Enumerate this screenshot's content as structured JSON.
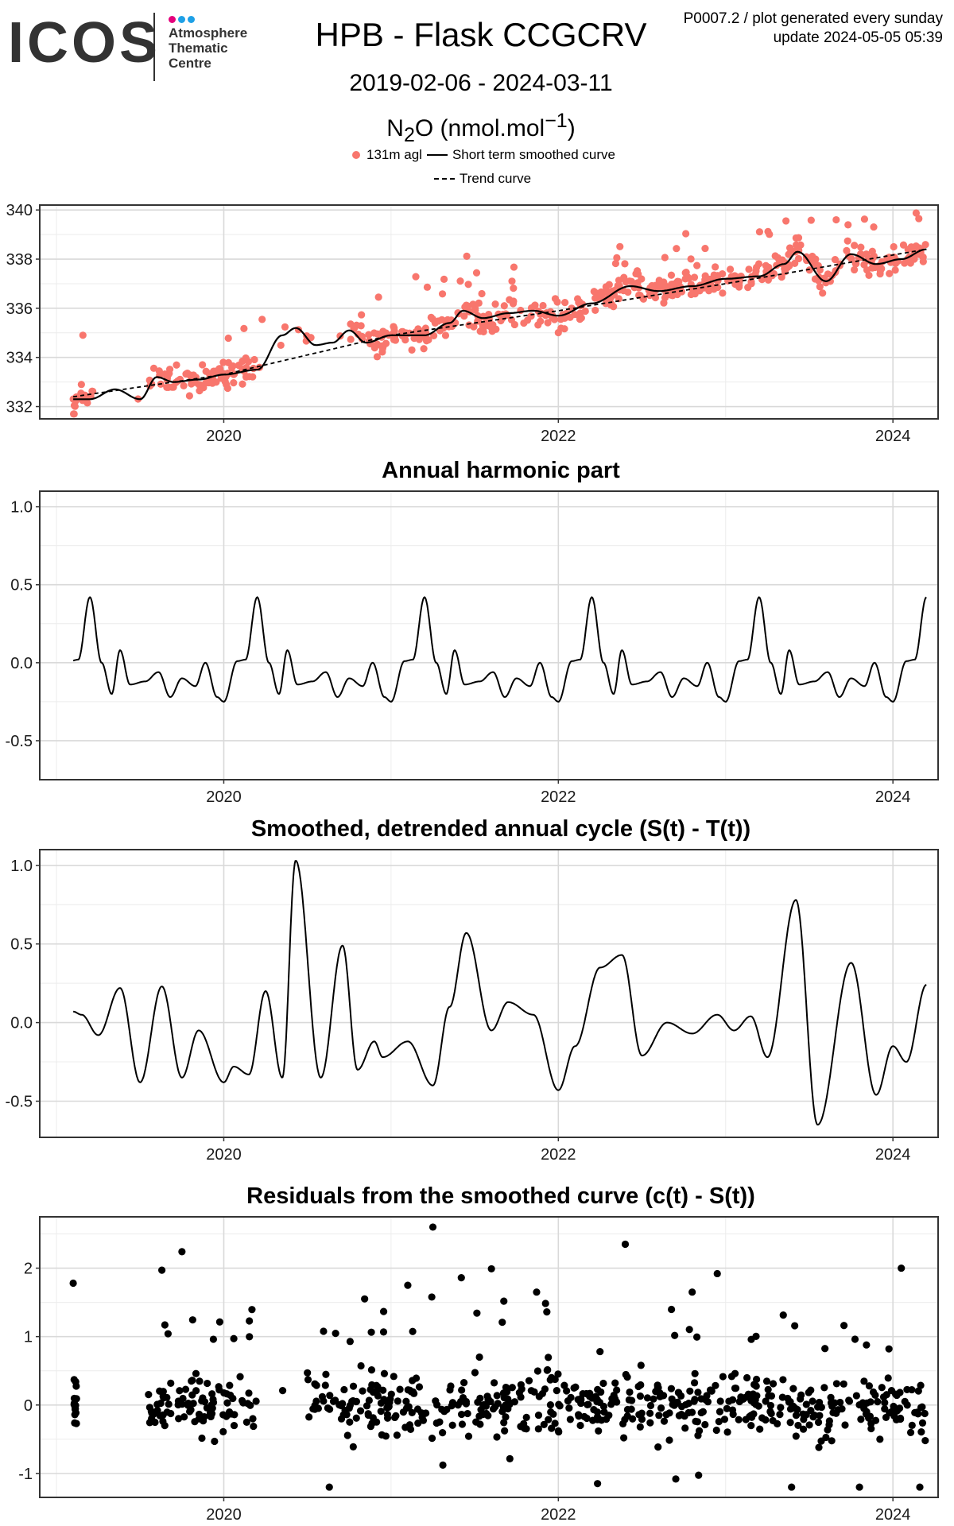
{
  "header": {
    "logo_text": "ICOS",
    "logo_subtitle_lines": [
      "Atmosphere",
      "Thematic",
      "Centre"
    ],
    "logo_dot_colors": [
      "#e4007c",
      "#1ea0e6",
      "#1ea0e6"
    ],
    "title": "HPB - Flask CCGCRV",
    "date_range": "2019-02-06 - 2024-03-11",
    "species_prefix": "N",
    "species_sub": "2",
    "species_mid": "O (nmol.mol",
    "species_sup": "−1",
    "species_suffix": ")",
    "note_line1": "P0007.2 / plot generated every sunday",
    "note_line2": "update  2024-05-05 05:39"
  },
  "legend": {
    "points_label": "131m agl",
    "smoothed_label": "Short term smoothed curve",
    "trend_label": "Trend curve"
  },
  "colors": {
    "points": "#f8766d",
    "line": "#000000",
    "panel_border": "#333333",
    "grid_major": "#d9d9d9",
    "grid_minor": "#ececec"
  },
  "chart_data": [
    {
      "type": "scatter",
      "title": "",
      "xlabel": "",
      "ylabel": "",
      "xlim": [
        2018.9,
        2024.27
      ],
      "ylim": [
        331.5,
        340.2
      ],
      "x_ticks": [
        2020,
        2022,
        2024
      ],
      "x_tick_labels": [
        "2020",
        "2022",
        "2024"
      ],
      "y_ticks": [
        332,
        334,
        336,
        338,
        340
      ],
      "y_tick_labels": [
        "332",
        "334",
        "336",
        "338",
        "340"
      ],
      "grid": true,
      "legend_position": "top",
      "series": [
        {
          "name": "131m agl",
          "kind": "points",
          "note": "flask samples, approx. 700 points, ~0.7 nmol/mol scatter around the smoothed curve"
        },
        {
          "name": "Short term smoothed curve",
          "kind": "line",
          "x": [
            2019.1,
            2019.2,
            2019.35,
            2019.5,
            2019.6,
            2019.7,
            2019.85,
            2020.0,
            2020.2,
            2020.35,
            2020.43,
            2020.55,
            2020.65,
            2020.75,
            2020.85,
            2021.0,
            2021.2,
            2021.35,
            2021.43,
            2021.55,
            2021.7,
            2021.85,
            2022.0,
            2022.2,
            2022.43,
            2022.6,
            2022.8,
            2023.0,
            2023.2,
            2023.35,
            2023.43,
            2023.6,
            2023.75,
            2023.9,
            2024.05,
            2024.2
          ],
          "y": [
            332.3,
            332.3,
            332.7,
            332.3,
            333.2,
            333.0,
            333.1,
            333.3,
            333.5,
            334.9,
            335.2,
            334.5,
            334.6,
            335.1,
            334.6,
            334.9,
            334.9,
            335.4,
            335.9,
            335.6,
            335.8,
            335.9,
            335.7,
            336.2,
            336.9,
            336.7,
            336.9,
            337.2,
            337.3,
            337.8,
            338.3,
            337.1,
            338.2,
            337.8,
            338.0,
            338.4
          ]
        },
        {
          "name": "Trend curve",
          "kind": "dashed-line",
          "x": [
            2019.1,
            2020.0,
            2021.0,
            2022.0,
            2023.0,
            2024.2
          ],
          "y": [
            332.4,
            333.3,
            334.9,
            335.9,
            337.0,
            338.4
          ]
        }
      ]
    },
    {
      "type": "line",
      "title": "Annual harmonic part",
      "xlim": [
        2018.9,
        2024.27
      ],
      "ylim": [
        -0.75,
        1.1
      ],
      "x_ticks": [
        2020,
        2022,
        2024
      ],
      "x_tick_labels": [
        "2020",
        "2022",
        "2024"
      ],
      "y_ticks": [
        -0.5,
        0.0,
        0.5,
        1.0
      ],
      "y_tick_labels": [
        "-0.5",
        "0.0",
        "0.5",
        "1.0"
      ],
      "grid": true,
      "series": [
        {
          "name": "",
          "harmonic": true,
          "x": [
            0.0,
            0.08,
            0.13,
            0.2,
            0.27,
            0.33,
            0.38,
            0.44,
            0.53,
            0.61,
            0.68,
            0.75,
            0.83,
            0.89,
            0.96
          ],
          "y": [
            -0.25,
            0.01,
            0.02,
            0.42,
            0.0,
            -0.2,
            0.08,
            -0.14,
            -0.12,
            -0.06,
            -0.22,
            -0.1,
            -0.15,
            0.0,
            -0.22
          ],
          "x_start": 2019.1,
          "x_end": 2024.2
        }
      ]
    },
    {
      "type": "line",
      "title": "Smoothed, detrended annual cycle (S(t) - T(t))",
      "xlim": [
        2018.9,
        2024.27
      ],
      "ylim": [
        -0.73,
        1.1
      ],
      "x_ticks": [
        2020,
        2022,
        2024
      ],
      "x_tick_labels": [
        "2020",
        "2022",
        "2024"
      ],
      "y_ticks": [
        -0.5,
        0.0,
        0.5,
        1.0
      ],
      "y_tick_labels": [
        "-0.5",
        "0.0",
        "0.5",
        "1.0"
      ],
      "grid": true,
      "series": [
        {
          "name": "",
          "x": [
            2019.1,
            2019.15,
            2019.25,
            2019.38,
            2019.5,
            2019.63,
            2019.75,
            2019.85,
            2020.0,
            2020.06,
            2020.15,
            2020.25,
            2020.35,
            2020.43,
            2020.58,
            2020.71,
            2020.8,
            2020.9,
            2020.95,
            2021.1,
            2021.25,
            2021.35,
            2021.45,
            2021.6,
            2021.7,
            2021.85,
            2022.0,
            2022.1,
            2022.25,
            2022.38,
            2022.5,
            2022.65,
            2022.8,
            2022.95,
            2023.05,
            2023.15,
            2023.25,
            2023.42,
            2023.55,
            2023.75,
            2023.9,
            2024.0,
            2024.08,
            2024.2
          ],
          "y": [
            0.07,
            0.05,
            -0.08,
            0.22,
            -0.38,
            0.23,
            -0.35,
            -0.05,
            -0.38,
            -0.28,
            -0.33,
            0.2,
            -0.35,
            1.03,
            -0.35,
            0.49,
            -0.3,
            -0.12,
            -0.22,
            -0.12,
            -0.4,
            0.1,
            0.57,
            -0.05,
            0.13,
            0.05,
            -0.43,
            -0.15,
            0.35,
            0.43,
            -0.21,
            0.0,
            -0.07,
            0.05,
            -0.05,
            0.04,
            -0.22,
            0.78,
            -0.65,
            0.38,
            -0.46,
            -0.15,
            -0.25,
            0.24
          ]
        }
      ]
    },
    {
      "type": "scatter",
      "title": "Residuals from the smoothed curve (c(t) - S(t))",
      "xlim": [
        2018.9,
        2024.27
      ],
      "ylim": [
        -1.35,
        2.75
      ],
      "x_ticks": [
        2020,
        2022,
        2024
      ],
      "x_tick_labels": [
        "2020",
        "2022",
        "2024"
      ],
      "y_ticks": [
        -1,
        0,
        1,
        2
      ],
      "y_tick_labels": [
        "-1",
        "0",
        "1",
        "2"
      ],
      "grid": true,
      "series": [
        {
          "name": "",
          "note": "residual points, mostly within -0.8 to 0.8",
          "outliers_x": [
            2019.1,
            2019.63,
            2019.75,
            2020.06,
            2020.5,
            2021.1,
            2021.25,
            2021.42,
            2021.6,
            2021.87,
            2022.4,
            2022.8,
            2022.95,
            2023.8,
            2024.05
          ],
          "outliers_y": [
            1.78,
            1.97,
            2.24,
            0.97,
            0.47,
            1.75,
            2.6,
            1.86,
            1.99,
            1.65,
            2.35,
            1.65,
            1.92,
            -1.2,
            2.0
          ]
        }
      ]
    }
  ]
}
